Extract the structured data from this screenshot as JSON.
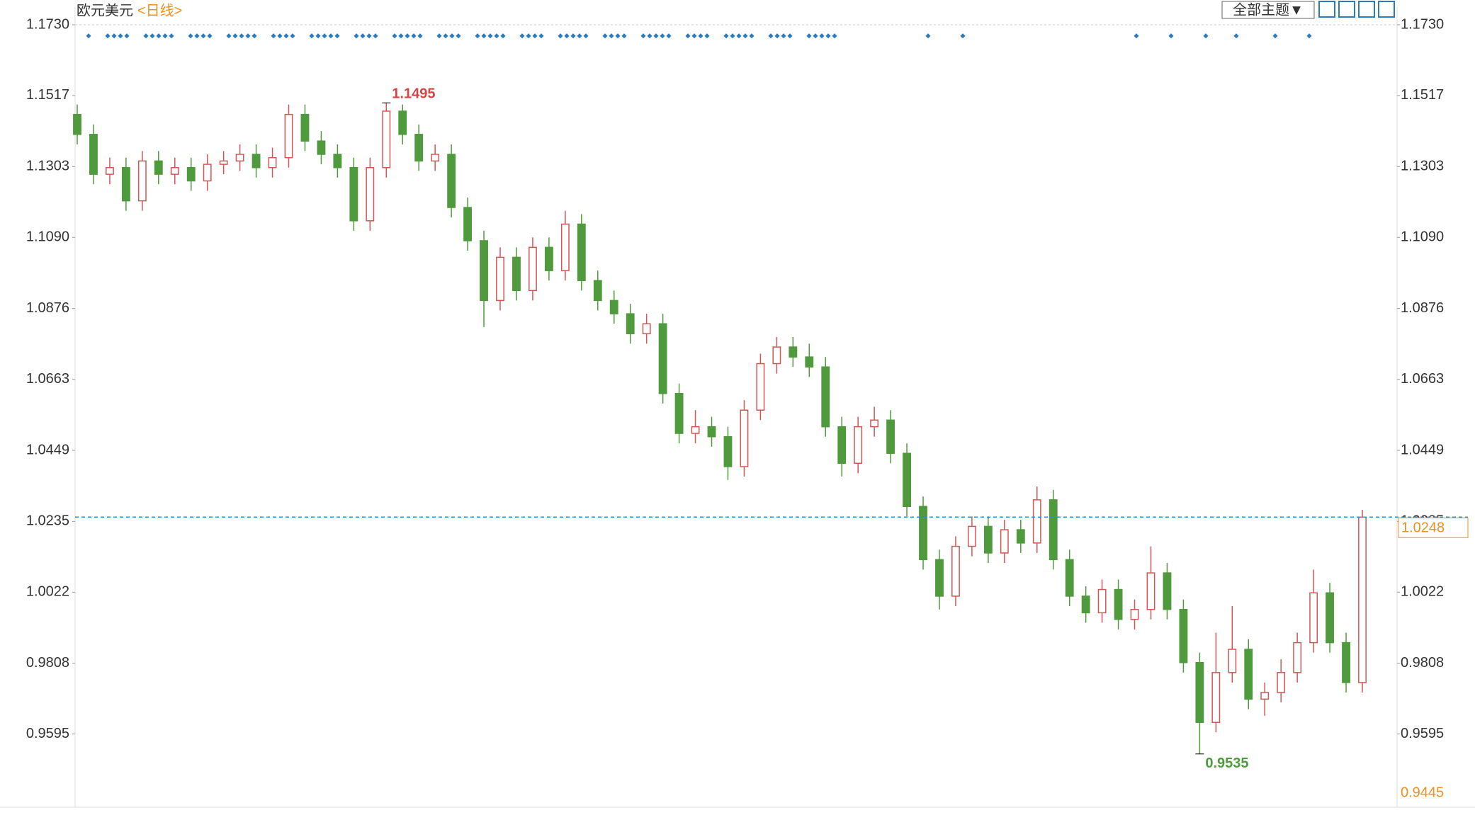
{
  "chart_data": {
    "type": "candlestick",
    "title": "欧元美元",
    "period": "<日线>",
    "theme_button": "全部主题▼",
    "up_color": "#d65454",
    "down_color": "#4f9a3c",
    "ylim": [
      0.9445,
      1.173
    ],
    "yticks": [
      {
        "value": 1.173,
        "label": "1.1730"
      },
      1.1517,
      1.1303,
      {
        "value": 1.109,
        "label": "1.1090"
      },
      1.0876,
      1.0663,
      1.0449,
      1.0235,
      1.0022,
      0.9808,
      0.9595
    ],
    "grid": false,
    "ohlc": [
      [
        1.146,
        1.149,
        1.137,
        1.14
      ],
      [
        1.14,
        1.143,
        1.125,
        1.128
      ],
      [
        1.128,
        1.133,
        1.125,
        1.13
      ],
      [
        1.13,
        1.133,
        1.117,
        1.12
      ],
      [
        1.12,
        1.135,
        1.117,
        1.132
      ],
      [
        1.132,
        1.135,
        1.125,
        1.128
      ],
      [
        1.128,
        1.133,
        1.125,
        1.13
      ],
      [
        1.13,
        1.133,
        1.123,
        1.126
      ],
      [
        1.126,
        1.134,
        1.123,
        1.131
      ],
      [
        1.131,
        1.135,
        1.128,
        1.132
      ],
      [
        1.132,
        1.137,
        1.129,
        1.134
      ],
      [
        1.134,
        1.137,
        1.127,
        1.13
      ],
      [
        1.13,
        1.136,
        1.127,
        1.133
      ],
      [
        1.133,
        1.149,
        1.13,
        1.146
      ],
      [
        1.146,
        1.149,
        1.135,
        1.138
      ],
      [
        1.138,
        1.141,
        1.131,
        1.134
      ],
      [
        1.134,
        1.137,
        1.127,
        1.13
      ],
      [
        1.13,
        1.133,
        1.111,
        1.114
      ],
      [
        1.114,
        1.133,
        1.111,
        1.13
      ],
      [
        1.13,
        1.1495,
        1.127,
        1.147
      ],
      [
        1.147,
        1.149,
        1.137,
        1.14
      ],
      [
        1.14,
        1.143,
        1.129,
        1.132
      ],
      [
        1.132,
        1.137,
        1.129,
        1.134
      ],
      [
        1.134,
        1.137,
        1.115,
        1.118
      ],
      [
        1.118,
        1.121,
        1.105,
        1.108
      ],
      [
        1.108,
        1.111,
        1.082,
        1.09
      ],
      [
        1.09,
        1.106,
        1.087,
        1.103
      ],
      [
        1.103,
        1.106,
        1.09,
        1.093
      ],
      [
        1.093,
        1.109,
        1.09,
        1.106
      ],
      [
        1.106,
        1.109,
        1.096,
        1.099
      ],
      [
        1.099,
        1.117,
        1.096,
        1.113
      ],
      [
        1.113,
        1.116,
        1.093,
        1.096
      ],
      [
        1.096,
        1.099,
        1.087,
        1.09
      ],
      [
        1.09,
        1.093,
        1.083,
        1.086
      ],
      [
        1.086,
        1.089,
        1.077,
        1.08
      ],
      [
        1.08,
        1.086,
        1.077,
        1.083
      ],
      [
        1.083,
        1.086,
        1.059,
        1.062
      ],
      [
        1.062,
        1.065,
        1.047,
        1.05
      ],
      [
        1.05,
        1.057,
        1.047,
        1.052
      ],
      [
        1.052,
        1.055,
        1.046,
        1.049
      ],
      [
        1.049,
        1.052,
        1.036,
        1.04
      ],
      [
        1.04,
        1.06,
        1.037,
        1.057
      ],
      [
        1.057,
        1.074,
        1.054,
        1.071
      ],
      [
        1.071,
        1.079,
        1.068,
        1.076
      ],
      [
        1.076,
        1.079,
        1.07,
        1.073
      ],
      [
        1.073,
        1.077,
        1.067,
        1.07
      ],
      [
        1.07,
        1.073,
        1.049,
        1.052
      ],
      [
        1.052,
        1.055,
        1.037,
        1.041
      ],
      [
        1.041,
        1.055,
        1.038,
        1.052
      ],
      [
        1.052,
        1.058,
        1.049,
        1.054
      ],
      [
        1.054,
        1.057,
        1.041,
        1.044
      ],
      [
        1.044,
        1.047,
        1.025,
        1.028
      ],
      [
        1.028,
        1.031,
        1.009,
        1.012
      ],
      [
        1.012,
        1.015,
        0.997,
        1.001
      ],
      [
        1.001,
        1.019,
        0.998,
        1.016
      ],
      [
        1.016,
        1.025,
        1.013,
        1.022
      ],
      [
        1.022,
        1.025,
        1.011,
        1.014
      ],
      [
        1.014,
        1.024,
        1.011,
        1.021
      ],
      [
        1.021,
        1.024,
        1.014,
        1.017
      ],
      [
        1.017,
        1.034,
        1.014,
        1.03
      ],
      [
        1.03,
        1.033,
        1.009,
        1.012
      ],
      [
        1.012,
        1.015,
        0.998,
        1.001
      ],
      [
        1.001,
        1.004,
        0.993,
        0.996
      ],
      [
        0.996,
        1.006,
        0.993,
        1.003
      ],
      [
        1.003,
        1.006,
        0.991,
        0.994
      ],
      [
        0.994,
        1.0,
        0.991,
        0.997
      ],
      [
        0.997,
        1.016,
        0.994,
        1.008
      ],
      [
        1.008,
        1.011,
        0.994,
        0.997
      ],
      [
        0.997,
        1.0,
        0.978,
        0.981
      ],
      [
        0.981,
        0.984,
        0.9535,
        0.963
      ],
      [
        0.963,
        0.99,
        0.96,
        0.978
      ],
      [
        0.978,
        0.998,
        0.975,
        0.985
      ],
      [
        0.985,
        0.988,
        0.967,
        0.97
      ],
      [
        0.97,
        0.975,
        0.965,
        0.972
      ],
      [
        0.972,
        0.982,
        0.969,
        0.978
      ],
      [
        0.978,
        0.99,
        0.975,
        0.987
      ],
      [
        0.987,
        1.009,
        0.984,
        1.002
      ],
      [
        1.002,
        1.005,
        0.984,
        0.987
      ],
      [
        0.987,
        0.99,
        0.972,
        0.975
      ],
      [
        0.975,
        1.027,
        0.972,
        1.0248
      ]
    ]
  }
}
